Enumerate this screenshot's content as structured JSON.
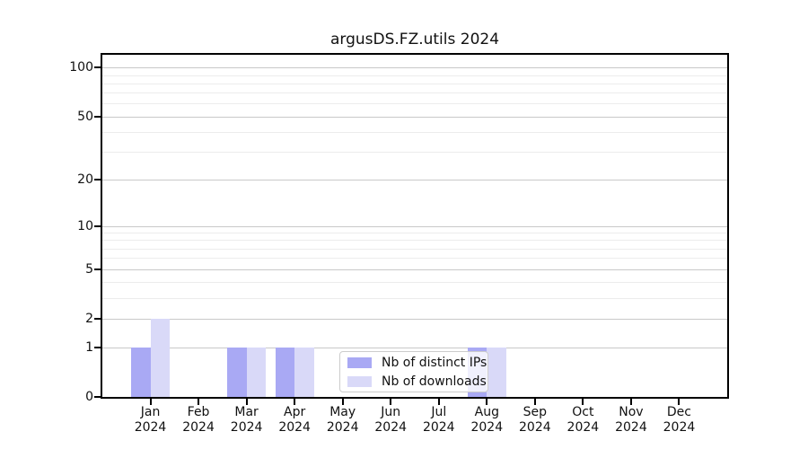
{
  "title": "argusDS.FZ.utils 2024",
  "chart_data": {
    "type": "bar",
    "title": "argusDS.FZ.utils 2024",
    "categories": [
      "Jan",
      "Feb",
      "Mar",
      "Apr",
      "May",
      "Jun",
      "Jul",
      "Aug",
      "Sep",
      "Oct",
      "Nov",
      "Dec"
    ],
    "category_year": "2024",
    "series": [
      {
        "name": "Nb of distinct IPs",
        "color": "#a9a9f4",
        "values": [
          1,
          0,
          1,
          1,
          0,
          0,
          0,
          1,
          0,
          0,
          0,
          0
        ]
      },
      {
        "name": "Nb of downloads",
        "color": "#d9d9f8",
        "values": [
          2,
          0,
          1,
          1,
          0,
          0,
          0,
          1,
          0,
          0,
          0,
          0
        ]
      }
    ],
    "xlabel": "",
    "ylabel": "",
    "y_scale": "log1p",
    "y_ticks": [
      0,
      1,
      2,
      5,
      10,
      20,
      50,
      100
    ],
    "y_minor_gridlines": [
      3,
      4,
      6,
      7,
      8,
      9,
      30,
      40,
      60,
      70,
      80,
      90
    ],
    "ylim": [
      0,
      120
    ],
    "grid": "horizontal",
    "legend_position": "lower-center"
  },
  "legend": {
    "items": [
      {
        "label": "Nb of distinct IPs",
        "color": "#a9a9f4"
      },
      {
        "label": "Nb of downloads",
        "color": "#d9d9f8"
      }
    ]
  }
}
